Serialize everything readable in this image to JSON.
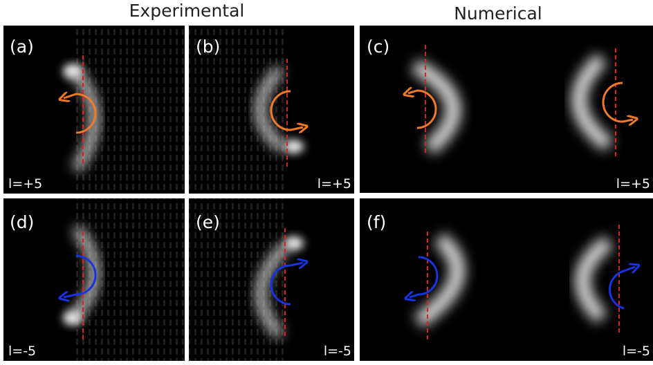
{
  "columns": {
    "experimental": "Experimental",
    "numerical": "Numerical"
  },
  "panels": [
    {
      "label": "(a)",
      "charge": "l=+5"
    },
    {
      "label": "(b)",
      "charge": "l=+5"
    },
    {
      "label": "(c)",
      "charge": "l=+5"
    },
    {
      "label": "(d)",
      "charge": "l=-5"
    },
    {
      "label": "(e)",
      "charge": "l=-5"
    },
    {
      "label": "(f)",
      "charge": "l=-5"
    }
  ]
}
